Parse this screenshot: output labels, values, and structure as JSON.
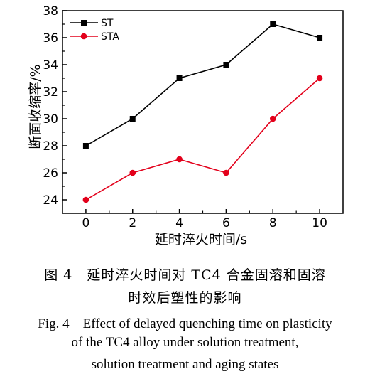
{
  "chart_data": {
    "type": "line",
    "title": "",
    "xlabel": "延时淬火时间/s",
    "ylabel": "断面收缩率/%",
    "x": [
      0,
      2,
      4,
      6,
      8,
      10
    ],
    "xticks": [
      "0",
      "2",
      "4",
      "6",
      "8",
      "10"
    ],
    "yticks": [
      "24",
      "26",
      "28",
      "30",
      "32",
      "34",
      "36",
      "38"
    ],
    "xlim": [
      -1,
      11
    ],
    "ylim": [
      23,
      38
    ],
    "grid": false,
    "legend_position": "top-left",
    "series": [
      {
        "name": "ST",
        "values": [
          28,
          30,
          33,
          34,
          37,
          36
        ],
        "color": "#000000",
        "marker": "square"
      },
      {
        "name": "STA",
        "values": [
          24,
          26,
          27,
          26,
          30,
          33
        ],
        "color": "#e3001b",
        "marker": "circle"
      }
    ]
  },
  "caption": {
    "cn_line1": "图 4　延时淬火时间对 TC4 合金固溶和固溶",
    "cn_line2": "时效后塑性的影响",
    "en_line1": "Fig. 4　Effect of delayed quenching time on plasticity",
    "en_line2": "of the TC4 alloy under solution treatment,",
    "en_line3": "solution treatment and aging states"
  }
}
